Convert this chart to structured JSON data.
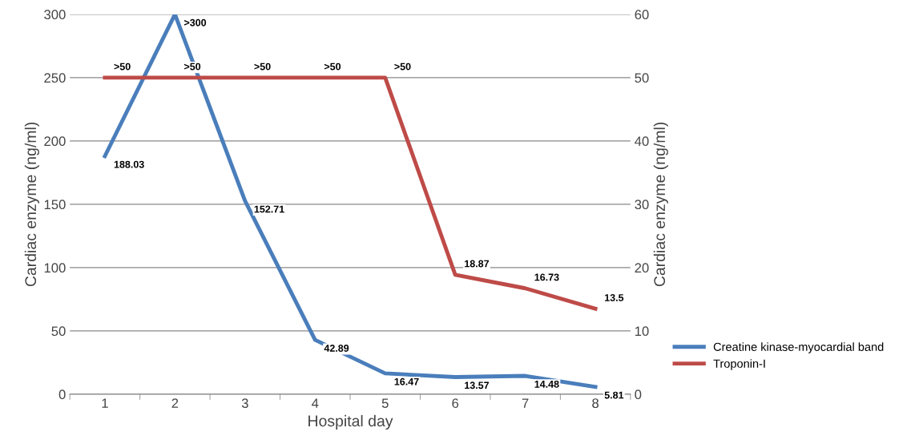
{
  "chart_data": {
    "type": "line",
    "xlabel": "Hospital day",
    "ylabel": "Cardiac enzyme (ng/ml)",
    "y2label": "Cardiac enzyme (ng/ml)",
    "categories": [
      "1",
      "2",
      "3",
      "4",
      "5",
      "6",
      "7",
      "8"
    ],
    "series": [
      {
        "name": "Creatine kinase-myocardial band",
        "color": "#4a7ebb",
        "values": [
          188.03,
          300,
          152.71,
          42.89,
          16.47,
          13.57,
          14.48,
          5.81
        ],
        "value_labels": [
          "188.03",
          ">300",
          "152.71",
          "42.89",
          "16.47",
          "13.57",
          "14.48",
          "5.81"
        ]
      },
      {
        "name": "Troponin-I",
        "color": "#be4b48",
        "axis": "y2",
        "values": [
          50,
          50,
          50,
          50,
          50,
          18.87,
          16.73,
          13.5
        ],
        "value_labels": [
          ">50",
          ">50",
          ">50",
          ">50",
          ">50",
          "18.87",
          "16.73",
          "13.5"
        ]
      }
    ],
    "ylim": [
      0,
      300
    ],
    "yticks": [
      0,
      50,
      100,
      150,
      200,
      250,
      300
    ],
    "y2lim": [
      0,
      60
    ],
    "y2ticks": [
      0,
      10,
      20,
      30,
      40,
      50,
      60
    ],
    "grid": "y",
    "legend": "right",
    "marker": "none",
    "line_style": "solid"
  }
}
